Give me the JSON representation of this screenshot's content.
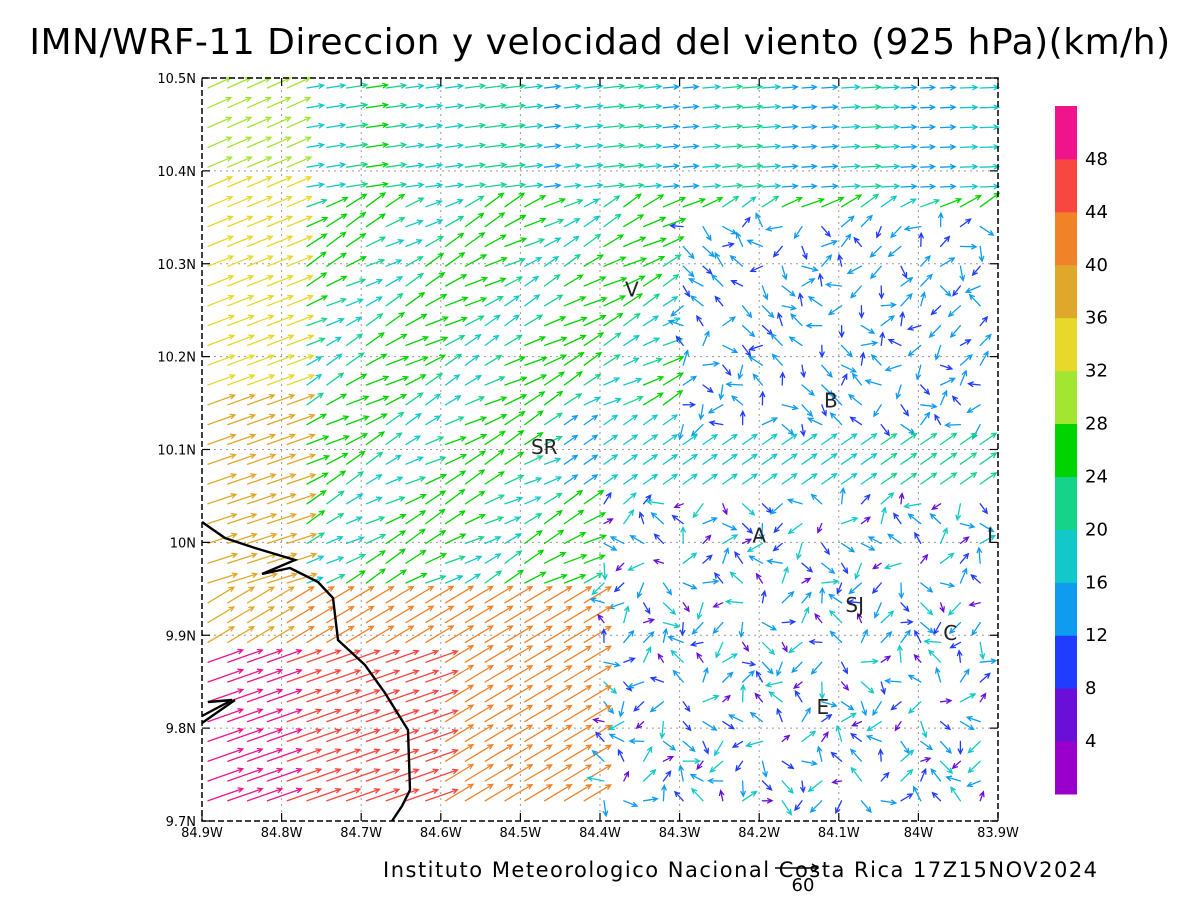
{
  "title": "IMN/WRF-11 Direccion y velocidad del viento (925 hPa)(km/h)",
  "footer": "Instituto Meteorologico Nacional Costa Rica 17Z15NOV2024",
  "map": {
    "lon_range": [
      -84.9,
      -83.9
    ],
    "lat_range": [
      9.7,
      10.5
    ],
    "x_ticks": [
      "84.9W",
      "84.8W",
      "84.7W",
      "84.6W",
      "84.5W",
      "84.4W",
      "84.3W",
      "84.2W",
      "84.1W",
      "84W",
      "83.9W"
    ],
    "y_ticks": [
      "9.7N",
      "9.8N",
      "9.9N",
      "10N",
      "10.1N",
      "10.2N",
      "10.3N",
      "10.4N",
      "10.5N"
    ],
    "grid": "dotted",
    "places": [
      {
        "name": "V",
        "lon": -84.36,
        "lat": 10.265
      },
      {
        "name": "B",
        "lon": -84.11,
        "lat": 10.145
      },
      {
        "name": "SR",
        "lon": -84.47,
        "lat": 10.095
      },
      {
        "name": "A",
        "lon": -84.2,
        "lat": 10.0
      },
      {
        "name": "I",
        "lon": -83.91,
        "lat": 10.0
      },
      {
        "name": "SJ",
        "lon": -84.08,
        "lat": 9.925
      },
      {
        "name": "C",
        "lon": -83.96,
        "lat": 9.895
      },
      {
        "name": "E",
        "lon": -84.12,
        "lat": 9.815
      }
    ],
    "reference_vector": {
      "label": "60",
      "speed_kmh": 60
    }
  },
  "colorbar": {
    "labels": [
      "4",
      "8",
      "12",
      "16",
      "20",
      "24",
      "28",
      "32",
      "36",
      "40",
      "44",
      "48"
    ],
    "colors": [
      "#9900cc",
      "#6a0fd8",
      "#1f3cff",
      "#0f9cf0",
      "#13c8c8",
      "#16d38a",
      "#00d400",
      "#a3e631",
      "#e8d82a",
      "#e0a82b",
      "#f08228",
      "#f84640",
      "#f0148c"
    ]
  }
}
